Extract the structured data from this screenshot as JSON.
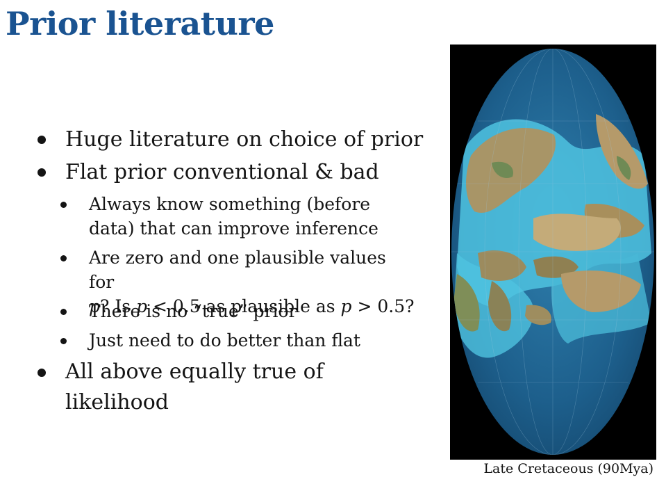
{
  "slide": {
    "title": "Prior literature",
    "bullets": [
      {
        "text": "Huge literature on choice of prior"
      },
      {
        "text": "Flat prior conventional & bad"
      },
      {
        "sub": [
          {
            "line1": "Always know something (before",
            "line2": "data) that can improve inference"
          },
          {
            "line1": "Are zero and one plausible values for",
            "line2_parts": [
              "p",
              "? Is ",
              "p",
              " < 0.5 as plausible as ",
              "p",
              " > 0.5?"
            ]
          },
          {
            "text": "There is no “true” prior"
          },
          {
            "text": "Just need to do better than flat"
          }
        ]
      },
      {
        "line1": "All above equally true of",
        "line2": "likelihood"
      }
    ],
    "figure": {
      "caption": "Late Cretaceous (90Mya)",
      "image_description_icon": "globe-map-image"
    }
  },
  "colors": {
    "title": "#1a5391",
    "ocean_deep": "#1f5f8a",
    "ocean_shallow": "#4fc3e0",
    "land": "#b59a6a",
    "land_green": "#6f8a55"
  }
}
